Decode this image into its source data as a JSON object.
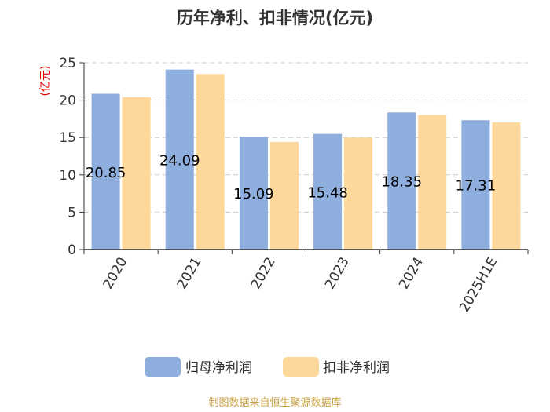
{
  "chart_data": {
    "type": "bar",
    "title": "历年净利、扣非情况(亿元)",
    "ylabel": "(亿元)",
    "xlabel": "",
    "categories": [
      "2020",
      "2021",
      "2022",
      "2023",
      "2024",
      "2025H1E"
    ],
    "series": [
      {
        "name": "归母净利润",
        "values": [
          20.85,
          24.09,
          15.09,
          15.48,
          18.35,
          17.31
        ],
        "color": "#8eaedd"
      },
      {
        "name": "扣非净利润",
        "values": [
          20.4,
          23.5,
          14.4,
          15.0,
          18.0,
          17.0
        ],
        "color": "#fdd89a"
      }
    ],
    "data_labels": [
      "20.85",
      "24.09",
      "15.09",
      "15.48",
      "18.35",
      "17.31"
    ],
    "ylim": [
      0,
      25
    ],
    "yticks": [
      0,
      5,
      10,
      15,
      20,
      25
    ],
    "grid": true,
    "legend_position": "bottom"
  },
  "source": "制图数据来自恒生聚源数据库"
}
